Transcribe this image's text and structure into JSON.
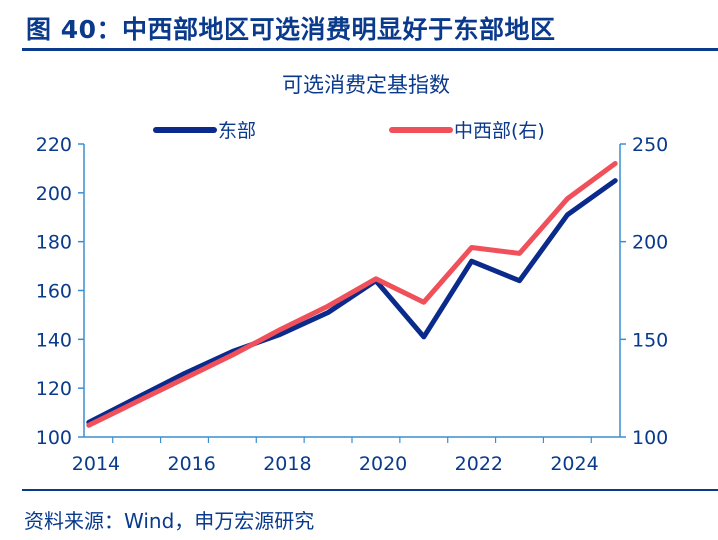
{
  "header": {
    "figure_title": "图 40：中西部地区可选消费明显好于东部地区"
  },
  "footer": {
    "source": "资料来源：Wind，申万宏源研究"
  },
  "colors": {
    "east": "#0a2a8c",
    "midwest": "#f0505a",
    "axis": "#3a8fd0",
    "text": "#0a3a8c"
  },
  "chart_data": {
    "type": "line",
    "title": "可选消费定基指数",
    "legend_position": "top",
    "x_ticks": [
      "2014",
      "2016",
      "2018",
      "2020",
      "2022",
      "2024"
    ],
    "x_range": [
      2013.8,
      2025.0
    ],
    "x": [
      2013.9,
      2014.9,
      2015.9,
      2016.9,
      2017.9,
      2018.9,
      2019.9,
      2020.9,
      2021.9,
      2022.9,
      2023.9,
      2024.9
    ],
    "y_left": {
      "range": [
        100,
        220
      ],
      "ticks": [
        "100",
        "120",
        "140",
        "160",
        "180",
        "200",
        "220"
      ]
    },
    "y_right": {
      "range": [
        100,
        250
      ],
      "ticks": [
        "100",
        "150",
        "200",
        "250"
      ]
    },
    "series": [
      {
        "name": "东部",
        "axis": "left",
        "color": "#0a2a8c",
        "values": [
          106,
          116,
          126,
          135,
          142,
          151,
          164,
          141,
          172,
          164,
          191,
          205
        ]
      },
      {
        "name": "中西部(右)",
        "axis": "right",
        "color": "#f0505a",
        "values": [
          106,
          118,
          130,
          142,
          155,
          167,
          181,
          169,
          197,
          194,
          222,
          240
        ]
      }
    ]
  }
}
